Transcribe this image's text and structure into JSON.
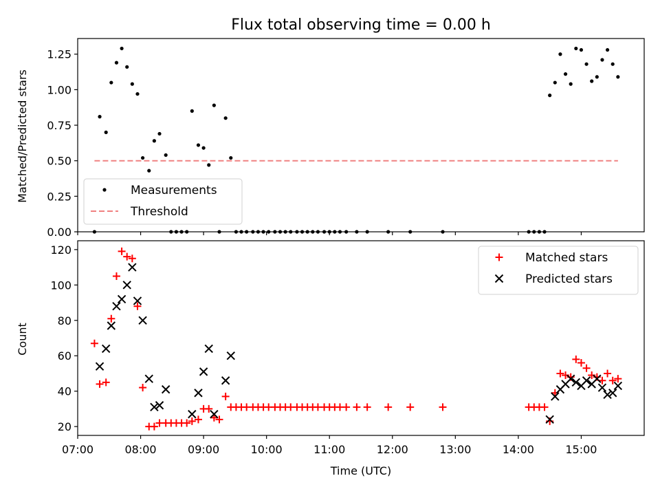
{
  "figure_title": "Flux total observing time = 0.00 h",
  "colors": {
    "measurement": "#000000",
    "threshold": "#f08080",
    "matched": "#ff0000",
    "predicted": "#000000",
    "axis": "#000000"
  },
  "chart_data": [
    {
      "type": "scatter",
      "title": "Flux total observing time = 0.00 h",
      "ylabel": "Matched/Predicted stars",
      "xlabel": "",
      "xlim": [
        "07:00",
        "16:00"
      ],
      "ylim": [
        0,
        1.36
      ],
      "yticks": [
        "0.00",
        "0.25",
        "0.50",
        "0.75",
        "1.00",
        "1.25"
      ],
      "legend_position": "lower-left",
      "grid": false,
      "series": [
        {
          "name": "Measurements",
          "marker": "dot",
          "points": [
            [
              "07:16",
              0.0
            ],
            [
              "07:21",
              0.81
            ],
            [
              "07:27",
              0.7
            ],
            [
              "07:32",
              1.05
            ],
            [
              "07:37",
              1.19
            ],
            [
              "07:42",
              1.29
            ],
            [
              "07:47",
              1.16
            ],
            [
              "07:52",
              1.04
            ],
            [
              "07:57",
              0.97
            ],
            [
              "08:02",
              0.52
            ],
            [
              "08:08",
              0.43
            ],
            [
              "08:13",
              0.64
            ],
            [
              "08:18",
              0.69
            ],
            [
              "08:24",
              0.54
            ],
            [
              "08:29",
              0.0
            ],
            [
              "08:34",
              0.0
            ],
            [
              "08:39",
              0.0
            ],
            [
              "08:44",
              0.0
            ],
            [
              "08:49",
              0.85
            ],
            [
              "08:55",
              0.61
            ],
            [
              "09:00",
              0.59
            ],
            [
              "09:05",
              0.47
            ],
            [
              "09:10",
              0.89
            ],
            [
              "09:15",
              0.0
            ],
            [
              "09:21",
              0.8
            ],
            [
              "09:26",
              0.52
            ],
            [
              "09:31",
              0.0
            ],
            [
              "09:36",
              0.0
            ],
            [
              "09:41",
              0.0
            ],
            [
              "09:47",
              0.0
            ],
            [
              "09:52",
              0.0
            ],
            [
              "09:57",
              0.0
            ],
            [
              "10:02",
              0.0
            ],
            [
              "10:08",
              0.0
            ],
            [
              "10:13",
              0.0
            ],
            [
              "10:18",
              0.0
            ],
            [
              "10:23",
              0.0
            ],
            [
              "10:29",
              0.0
            ],
            [
              "10:34",
              0.0
            ],
            [
              "10:39",
              0.0
            ],
            [
              "10:44",
              0.0
            ],
            [
              "10:49",
              0.0
            ],
            [
              "10:55",
              0.0
            ],
            [
              "11:00",
              0.0
            ],
            [
              "11:05",
              0.0
            ],
            [
              "11:10",
              0.0
            ],
            [
              "11:16",
              0.0
            ],
            [
              "11:26",
              0.0
            ],
            [
              "11:36",
              0.0
            ],
            [
              "11:56",
              0.0
            ],
            [
              "12:17",
              0.0
            ],
            [
              "12:48",
              0.0
            ],
            [
              "14:10",
              0.0
            ],
            [
              "14:15",
              0.0
            ],
            [
              "14:20",
              0.0
            ],
            [
              "14:25",
              0.0
            ],
            [
              "14:30",
              0.96
            ],
            [
              "14:35",
              1.05
            ],
            [
              "14:40",
              1.25
            ],
            [
              "14:45",
              1.11
            ],
            [
              "14:50",
              1.04
            ],
            [
              "14:55",
              1.29
            ],
            [
              "15:00",
              1.28
            ],
            [
              "15:05",
              1.18
            ],
            [
              "15:10",
              1.06
            ],
            [
              "15:15",
              1.09
            ],
            [
              "15:20",
              1.21
            ],
            [
              "15:25",
              1.28
            ],
            [
              "15:30",
              1.18
            ],
            [
              "15:35",
              1.09
            ]
          ]
        },
        {
          "name": "Threshold",
          "marker": "dashed-line",
          "points": [
            [
              "07:16",
              0.5
            ],
            [
              "15:35",
              0.5
            ]
          ]
        }
      ]
    },
    {
      "type": "scatter",
      "title": "",
      "ylabel": "Count",
      "xlabel": "Time (UTC)",
      "xlim": [
        "07:00",
        "16:00"
      ],
      "ylim": [
        15,
        125
      ],
      "yticks": [
        "20",
        "40",
        "60",
        "80",
        "100",
        "120"
      ],
      "xticks": [
        "07:00",
        "08:00",
        "09:00",
        "10:00",
        "11:00",
        "12:00",
        "13:00",
        "14:00",
        "15:00"
      ],
      "legend_position": "upper-right",
      "grid": false,
      "series": [
        {
          "name": "Matched stars",
          "marker": "plus",
          "points": [
            [
              "07:16",
              67
            ],
            [
              "07:21",
              44
            ],
            [
              "07:27",
              45
            ],
            [
              "07:32",
              81
            ],
            [
              "07:37",
              105
            ],
            [
              "07:42",
              119
            ],
            [
              "07:47",
              116
            ],
            [
              "07:52",
              115
            ],
            [
              "07:57",
              88
            ],
            [
              "08:02",
              42
            ],
            [
              "08:08",
              20
            ],
            [
              "08:13",
              20
            ],
            [
              "08:18",
              22
            ],
            [
              "08:24",
              22
            ],
            [
              "08:29",
              22
            ],
            [
              "08:34",
              22
            ],
            [
              "08:39",
              22
            ],
            [
              "08:44",
              22
            ],
            [
              "08:49",
              23
            ],
            [
              "08:55",
              24
            ],
            [
              "09:00",
              30
            ],
            [
              "09:05",
              30
            ],
            [
              "09:10",
              25
            ],
            [
              "09:15",
              24
            ],
            [
              "09:21",
              37
            ],
            [
              "09:26",
              31
            ],
            [
              "09:31",
              31
            ],
            [
              "09:36",
              31
            ],
            [
              "09:41",
              31
            ],
            [
              "09:47",
              31
            ],
            [
              "09:52",
              31
            ],
            [
              "09:57",
              31
            ],
            [
              "10:02",
              31
            ],
            [
              "10:08",
              31
            ],
            [
              "10:13",
              31
            ],
            [
              "10:18",
              31
            ],
            [
              "10:23",
              31
            ],
            [
              "10:29",
              31
            ],
            [
              "10:34",
              31
            ],
            [
              "10:39",
              31
            ],
            [
              "10:44",
              31
            ],
            [
              "10:49",
              31
            ],
            [
              "10:55",
              31
            ],
            [
              "11:00",
              31
            ],
            [
              "11:05",
              31
            ],
            [
              "11:10",
              31
            ],
            [
              "11:16",
              31
            ],
            [
              "11:26",
              31
            ],
            [
              "11:36",
              31
            ],
            [
              "11:56",
              31
            ],
            [
              "12:17",
              31
            ],
            [
              "12:48",
              31
            ],
            [
              "14:10",
              31
            ],
            [
              "14:15",
              31
            ],
            [
              "14:20",
              31
            ],
            [
              "14:25",
              31
            ],
            [
              "14:30",
              23
            ],
            [
              "14:35",
              39
            ],
            [
              "14:40",
              50
            ],
            [
              "14:45",
              49
            ],
            [
              "14:50",
              48
            ],
            [
              "14:55",
              58
            ],
            [
              "15:00",
              56
            ],
            [
              "15:05",
              53
            ],
            [
              "15:10",
              49
            ],
            [
              "15:15",
              48
            ],
            [
              "15:20",
              46
            ],
            [
              "15:25",
              50
            ],
            [
              "15:30",
              46
            ],
            [
              "15:35",
              47
            ]
          ]
        },
        {
          "name": "Predicted stars",
          "marker": "x",
          "points": [
            [
              "07:21",
              54
            ],
            [
              "07:27",
              64
            ],
            [
              "07:32",
              77
            ],
            [
              "07:37",
              88
            ],
            [
              "07:42",
              92
            ],
            [
              "07:47",
              100
            ],
            [
              "07:52",
              110
            ],
            [
              "07:57",
              91
            ],
            [
              "08:02",
              80
            ],
            [
              "08:08",
              47
            ],
            [
              "08:13",
              31
            ],
            [
              "08:18",
              32
            ],
            [
              "08:24",
              41
            ],
            [
              "08:49",
              27
            ],
            [
              "08:55",
              39
            ],
            [
              "09:00",
              51
            ],
            [
              "09:05",
              64
            ],
            [
              "09:10",
              27
            ],
            [
              "09:21",
              46
            ],
            [
              "09:26",
              60
            ],
            [
              "14:30",
              24
            ],
            [
              "14:35",
              37
            ],
            [
              "14:40",
              41
            ],
            [
              "14:45",
              44
            ],
            [
              "14:50",
              47
            ],
            [
              "14:55",
              45
            ],
            [
              "15:00",
              43
            ],
            [
              "15:05",
              46
            ],
            [
              "15:10",
              44
            ],
            [
              "15:15",
              47
            ],
            [
              "15:20",
              42
            ],
            [
              "15:25",
              38
            ],
            [
              "15:30",
              39
            ],
            [
              "15:35",
              43
            ]
          ]
        }
      ]
    }
  ]
}
